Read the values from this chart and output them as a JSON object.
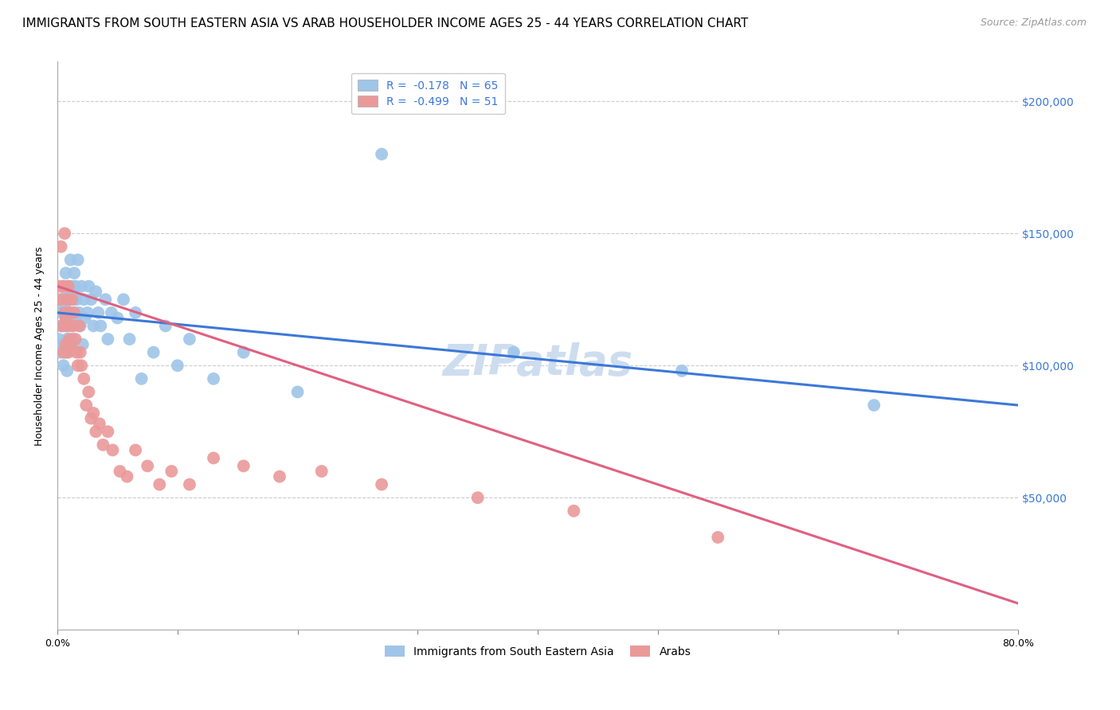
{
  "title": "IMMIGRANTS FROM SOUTH EASTERN ASIA VS ARAB HOUSEHOLDER INCOME AGES 25 - 44 YEARS CORRELATION CHART",
  "source": "Source: ZipAtlas.com",
  "ylabel": "Householder Income Ages 25 - 44 years",
  "y_ticks": [
    50000,
    100000,
    150000,
    200000
  ],
  "y_tick_labels": [
    "$50,000",
    "$100,000",
    "$150,000",
    "$200,000"
  ],
  "ylim": [
    0,
    215000
  ],
  "xlim": [
    0.0,
    0.8
  ],
  "legend_blue_label": "R =  -0.178   N = 65",
  "legend_pink_label": "R =  -0.499   N = 51",
  "legend1_label": "Immigrants from South Eastern Asia",
  "legend2_label": "Arabs",
  "blue_color": "#9fc5e8",
  "pink_color": "#ea9999",
  "blue_line_color": "#3c78d8",
  "pink_line_color": "#e06080",
  "watermark": "ZIPatlas",
  "blue_scatter_x": [
    0.001,
    0.002,
    0.003,
    0.004,
    0.004,
    0.005,
    0.005,
    0.005,
    0.006,
    0.006,
    0.006,
    0.007,
    0.007,
    0.007,
    0.008,
    0.008,
    0.008,
    0.009,
    0.009,
    0.01,
    0.01,
    0.011,
    0.011,
    0.012,
    0.012,
    0.013,
    0.013,
    0.014,
    0.014,
    0.015,
    0.015,
    0.016,
    0.017,
    0.018,
    0.019,
    0.02,
    0.021,
    0.022,
    0.023,
    0.025,
    0.026,
    0.028,
    0.03,
    0.032,
    0.034,
    0.036,
    0.04,
    0.042,
    0.045,
    0.05,
    0.055,
    0.06,
    0.065,
    0.07,
    0.08,
    0.09,
    0.1,
    0.11,
    0.13,
    0.155,
    0.2,
    0.27,
    0.38,
    0.52,
    0.68
  ],
  "blue_scatter_y": [
    110000,
    105000,
    115000,
    108000,
    120000,
    125000,
    130000,
    100000,
    115000,
    108000,
    122000,
    118000,
    105000,
    135000,
    110000,
    128000,
    98000,
    115000,
    130000,
    120000,
    125000,
    140000,
    108000,
    130000,
    115000,
    120000,
    110000,
    135000,
    125000,
    118000,
    130000,
    125000,
    140000,
    120000,
    115000,
    130000,
    108000,
    125000,
    118000,
    120000,
    130000,
    125000,
    115000,
    128000,
    120000,
    115000,
    125000,
    110000,
    120000,
    118000,
    125000,
    110000,
    120000,
    95000,
    105000,
    115000,
    100000,
    110000,
    95000,
    105000,
    90000,
    180000,
    105000,
    98000,
    85000
  ],
  "pink_scatter_x": [
    0.001,
    0.002,
    0.003,
    0.004,
    0.005,
    0.005,
    0.006,
    0.006,
    0.007,
    0.007,
    0.008,
    0.008,
    0.009,
    0.009,
    0.01,
    0.01,
    0.011,
    0.012,
    0.013,
    0.014,
    0.015,
    0.016,
    0.017,
    0.018,
    0.019,
    0.02,
    0.022,
    0.024,
    0.026,
    0.028,
    0.03,
    0.032,
    0.035,
    0.038,
    0.042,
    0.046,
    0.052,
    0.058,
    0.065,
    0.075,
    0.085,
    0.095,
    0.11,
    0.13,
    0.155,
    0.185,
    0.22,
    0.27,
    0.35,
    0.43,
    0.55
  ],
  "pink_scatter_y": [
    130000,
    125000,
    145000,
    115000,
    130000,
    105000,
    120000,
    150000,
    118000,
    108000,
    125000,
    115000,
    130000,
    105000,
    120000,
    110000,
    108000,
    125000,
    115000,
    120000,
    110000,
    105000,
    100000,
    115000,
    105000,
    100000,
    95000,
    85000,
    90000,
    80000,
    82000,
    75000,
    78000,
    70000,
    75000,
    68000,
    60000,
    58000,
    68000,
    62000,
    55000,
    60000,
    55000,
    65000,
    62000,
    58000,
    60000,
    55000,
    50000,
    45000,
    35000
  ],
  "blue_line_x": [
    0.0,
    0.8
  ],
  "blue_line_y": [
    120000,
    85000
  ],
  "pink_line_x": [
    0.0,
    0.8
  ],
  "pink_line_y": [
    130000,
    10000
  ],
  "title_fontsize": 11,
  "axis_label_fontsize": 9,
  "tick_fontsize": 9,
  "legend_fontsize": 10,
  "source_fontsize": 9,
  "watermark_fontsize": 38,
  "watermark_color": "#cdddf0",
  "background_color": "#ffffff",
  "grid_color": "#cccccc",
  "right_tick_color": "#3c78d8",
  "dpi": 100
}
